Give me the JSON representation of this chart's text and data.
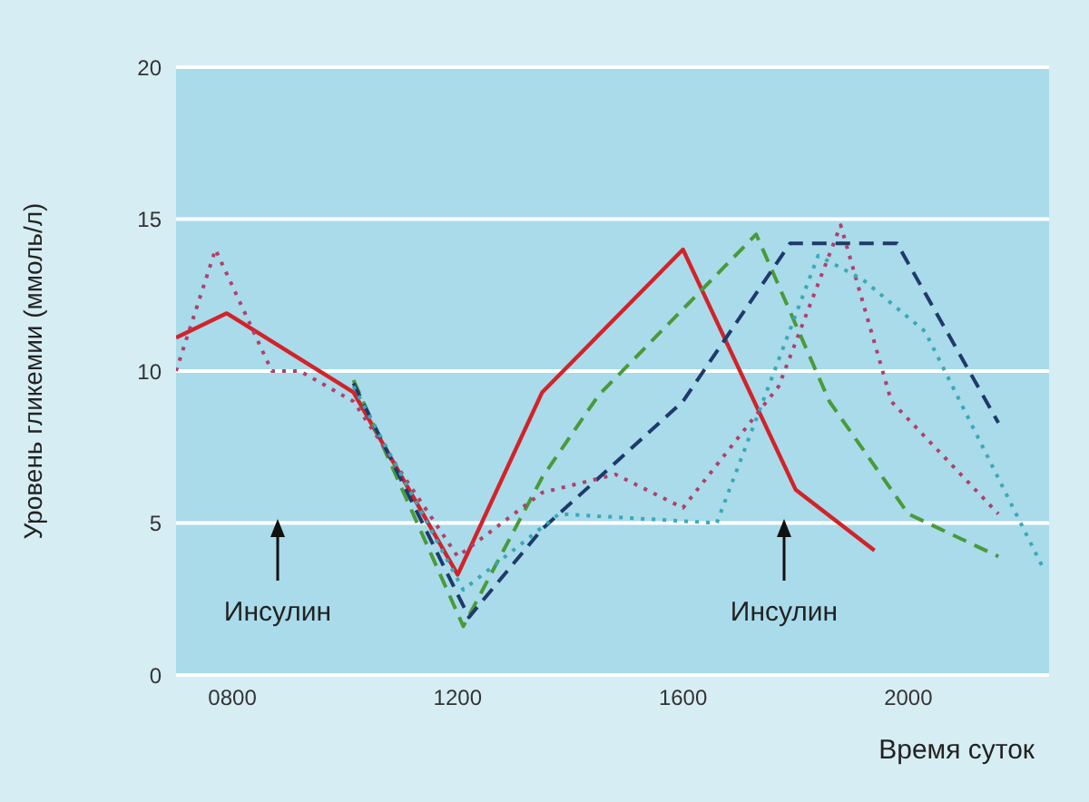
{
  "chart_data": {
    "type": "line",
    "ylabel": "Уровень гликемии (ммоль/л)",
    "xlabel": "Время суток",
    "xlim": [
      700,
      2250
    ],
    "xticks": [
      {
        "value": 800,
        "label": "0800"
      },
      1200,
      1600,
      2000
    ],
    "ylim": [
      0,
      20
    ],
    "yticks": [
      0,
      5,
      10,
      15,
      20
    ],
    "grid": "y",
    "marker": "none",
    "legend": false,
    "annotations": [
      "Инсулин",
      "Инсулин"
    ],
    "series": [
      {
        "color": "#d2232a",
        "line_style": "solid",
        "x": [
          700,
          790,
          1015,
          1200,
          1350,
          1600,
          1800,
          1940
        ],
        "values": [
          11.1,
          11.9,
          9.3,
          3.3,
          9.3,
          14,
          6.1,
          4.1
        ]
      },
      {
        "color": "#4a9a3a",
        "line_style": "dashed",
        "x": [
          1015,
          1210,
          1350,
          1450,
          1730,
          1860,
          2000,
          2160
        ],
        "values": [
          9.7,
          1.6,
          6.5,
          9.2,
          14.5,
          9,
          5.3,
          3.9
        ]
      },
      {
        "color": "#1f3a6a",
        "line_style": "dashed",
        "x": [
          1015,
          1220,
          1350,
          1600,
          1790,
          1980,
          2160
        ],
        "values": [
          9.6,
          1.9,
          4.8,
          9,
          14.2,
          14.2,
          8.3
        ]
      },
      {
        "color": "#b0406a",
        "line_style": "dotted",
        "x": [
          700,
          770,
          870,
          920,
          1015,
          1200,
          1350,
          1480,
          1600,
          1770,
          1880,
          1970,
          2160
        ],
        "values": [
          10,
          14,
          10,
          10,
          9,
          3.9,
          6,
          6.6,
          5.5,
          9.5,
          14.8,
          9,
          5.3
        ]
      },
      {
        "color": "#3aa8b8",
        "line_style": "dotted",
        "x": [
          1015,
          1210,
          1380,
          1660,
          1840,
          1920,
          2030,
          2240
        ],
        "values": [
          9.5,
          2.8,
          5.3,
          5,
          13.8,
          13,
          11.3,
          3.5
        ]
      }
    ]
  }
}
